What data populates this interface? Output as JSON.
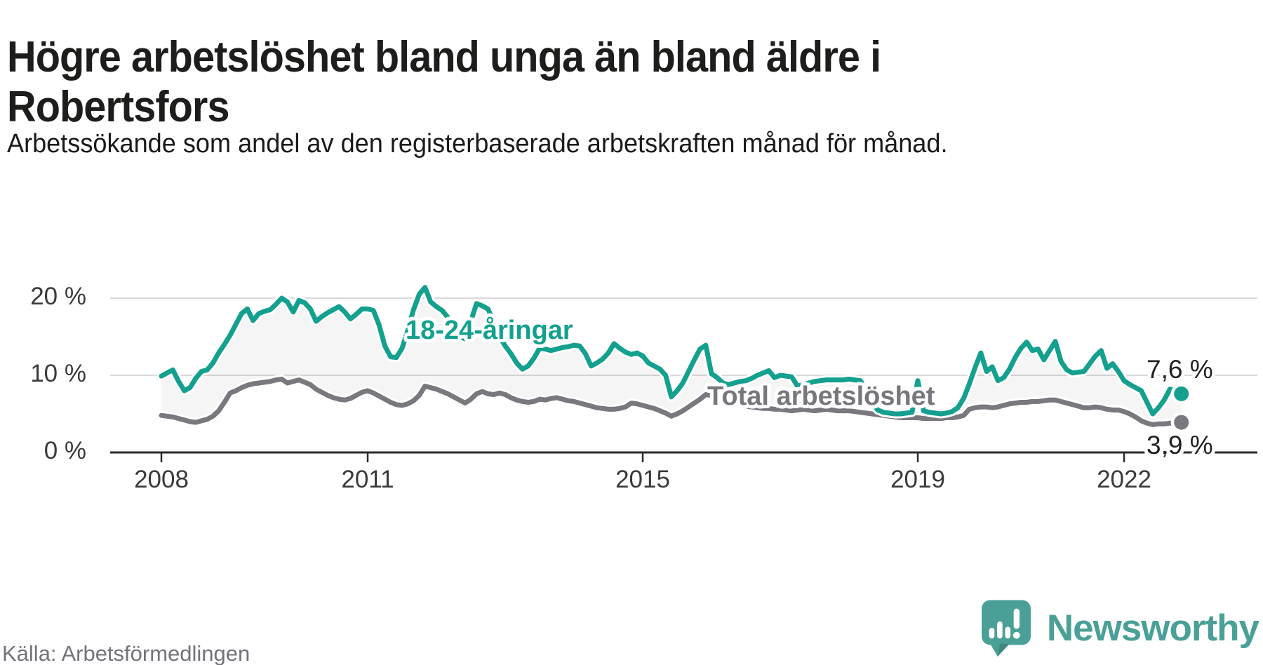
{
  "header": {
    "title": "Högre arbetslöshet bland unga än bland äldre i Robertsfors",
    "subtitle": "Arbetssökande som andel av den registerbaserade arbetskraften månad för månad."
  },
  "footer": {
    "source": "Källa: Arbetsförmedlingen",
    "brand": "Newsworthy"
  },
  "colors": {
    "youth_line": "#14a08e",
    "total_line": "#78787e",
    "logo_teal": "#4aa096",
    "axis": "#2b2b2b",
    "gridline": "#d9d9d9",
    "area_fill": "rgba(90,90,100,0.06)"
  },
  "chart_data": {
    "type": "line",
    "title": "Högre arbetslöshet bland unga än bland äldre i Robertsfors",
    "subtitle": "Arbetssökande som andel av den registerbaserade arbetskraften månad för månad.",
    "unit": "%",
    "x_start": "2008-01",
    "x_end": "2022-11",
    "x_ticks": [
      {
        "label": "2008",
        "year": 2008
      },
      {
        "label": "2011",
        "year": 2011
      },
      {
        "label": "2015",
        "year": 2015
      },
      {
        "label": "2019",
        "year": 2019
      },
      {
        "label": "2022",
        "year": 2022
      }
    ],
    "y_ticks": [
      {
        "label": "0 %",
        "value": 0
      },
      {
        "label": "10 %",
        "value": 10
      },
      {
        "label": "20 %",
        "value": 20
      }
    ],
    "ylim": [
      0,
      26
    ],
    "grid": "horizontal",
    "legend_position": "inline-labels",
    "end_labels": {
      "youth": "7,6 %",
      "total": "3,9 %"
    },
    "series": [
      {
        "name": "18-24-åringar",
        "values": [
          9.9,
          10.3,
          10.7,
          9.2,
          8.0,
          8.4,
          9.6,
          10.5,
          10.7,
          11.6,
          12.9,
          14.0,
          15.2,
          16.6,
          18.0,
          18.6,
          17.1,
          18.0,
          18.3,
          18.5,
          19.2,
          20.0,
          19.5,
          18.2,
          19.7,
          19.4,
          18.6,
          17.0,
          17.6,
          18.1,
          18.5,
          18.9,
          18.2,
          17.3,
          17.9,
          18.6,
          18.6,
          18.4,
          16.5,
          13.8,
          12.4,
          12.3,
          13.5,
          15.8,
          18.5,
          20.5,
          21.4,
          19.5,
          18.9,
          18.4,
          17.5,
          16.2,
          15.2,
          14.7,
          17.0,
          19.3,
          19.0,
          18.6,
          16.8,
          15.0,
          13.8,
          12.8,
          11.6,
          10.8,
          11.2,
          12.2,
          13.5,
          13.4,
          13.2,
          13.4,
          13.6,
          13.7,
          13.9,
          13.8,
          12.8,
          11.2,
          11.6,
          12.1,
          12.9,
          14.1,
          13.5,
          13.0,
          12.7,
          12.9,
          12.5,
          11.6,
          11.2,
          10.8,
          10.0,
          7.2,
          8.0,
          9.0,
          10.5,
          12.0,
          13.4,
          13.9,
          10.2,
          9.7,
          9.0,
          8.8,
          9.0,
          9.2,
          9.3,
          9.6,
          10.0,
          10.3,
          10.6,
          9.7,
          10.0,
          9.9,
          9.8,
          8.6,
          8.8,
          9.0,
          9.2,
          9.3,
          9.4,
          9.4,
          9.4,
          9.4,
          9.5,
          9.4,
          9.3,
          8.0,
          6.5,
          5.5,
          5.2,
          5.1,
          5.0,
          5.0,
          5.1,
          5.2,
          9.3,
          5.4,
          5.2,
          5.1,
          5.0,
          5.1,
          5.3,
          5.8,
          7.0,
          8.9,
          11.0,
          12.9,
          10.5,
          11.1,
          9.3,
          9.7,
          10.8,
          12.3,
          13.5,
          14.3,
          13.2,
          13.4,
          12.0,
          13.2,
          14.4,
          11.8,
          10.7,
          10.3,
          10.4,
          10.5,
          11.5,
          12.5,
          13.2,
          10.9,
          11.5,
          10.5,
          9.3,
          8.8,
          8.4,
          8.0,
          6.5,
          5.0,
          5.8,
          6.8,
          8.2,
          8.0,
          7.6
        ]
      },
      {
        "name": "Total arbetslöshet",
        "values": [
          4.8,
          4.7,
          4.6,
          4.4,
          4.2,
          4.0,
          3.9,
          4.1,
          4.3,
          4.7,
          5.4,
          6.5,
          7.7,
          8.0,
          8.4,
          8.7,
          8.9,
          9.0,
          9.1,
          9.2,
          9.4,
          9.5,
          9.0,
          9.2,
          9.4,
          9.1,
          8.8,
          8.2,
          7.8,
          7.4,
          7.1,
          6.9,
          6.8,
          7.0,
          7.4,
          7.8,
          8.0,
          7.7,
          7.3,
          6.9,
          6.5,
          6.2,
          6.1,
          6.3,
          6.7,
          7.4,
          8.6,
          8.4,
          8.2,
          7.9,
          7.6,
          7.2,
          6.8,
          6.4,
          6.9,
          7.6,
          7.9,
          7.6,
          7.5,
          7.7,
          7.5,
          7.1,
          6.8,
          6.6,
          6.5,
          6.6,
          6.9,
          6.8,
          7.0,
          7.1,
          6.9,
          6.7,
          6.6,
          6.4,
          6.2,
          6.0,
          5.8,
          5.7,
          5.6,
          5.6,
          5.7,
          5.9,
          6.4,
          6.3,
          6.1,
          5.9,
          5.7,
          5.4,
          5.1,
          4.7,
          5.0,
          5.4,
          5.9,
          6.4,
          6.9,
          7.5,
          7.4,
          7.1,
          6.8,
          6.6,
          6.4,
          6.2,
          6.0,
          5.9,
          5.8,
          5.7,
          5.7,
          5.6,
          5.6,
          5.5,
          5.4,
          5.5,
          5.6,
          5.5,
          5.4,
          5.5,
          5.6,
          5.5,
          5.4,
          5.4,
          5.4,
          5.3,
          5.2,
          5.1,
          5.0,
          4.9,
          4.8,
          4.7,
          4.6,
          4.5,
          4.5,
          4.5,
          4.5,
          4.4,
          4.4,
          4.4,
          4.4,
          4.5,
          4.5,
          4.6,
          4.8,
          5.6,
          5.8,
          5.9,
          5.9,
          5.8,
          5.9,
          6.1,
          6.3,
          6.4,
          6.5,
          6.5,
          6.6,
          6.6,
          6.7,
          6.8,
          6.8,
          6.6,
          6.4,
          6.2,
          6.0,
          5.8,
          5.8,
          5.9,
          5.8,
          5.6,
          5.5,
          5.5,
          5.3,
          5.0,
          4.6,
          4.1,
          3.8,
          3.6,
          3.7,
          3.7,
          3.8,
          3.8,
          3.9
        ]
      }
    ]
  }
}
